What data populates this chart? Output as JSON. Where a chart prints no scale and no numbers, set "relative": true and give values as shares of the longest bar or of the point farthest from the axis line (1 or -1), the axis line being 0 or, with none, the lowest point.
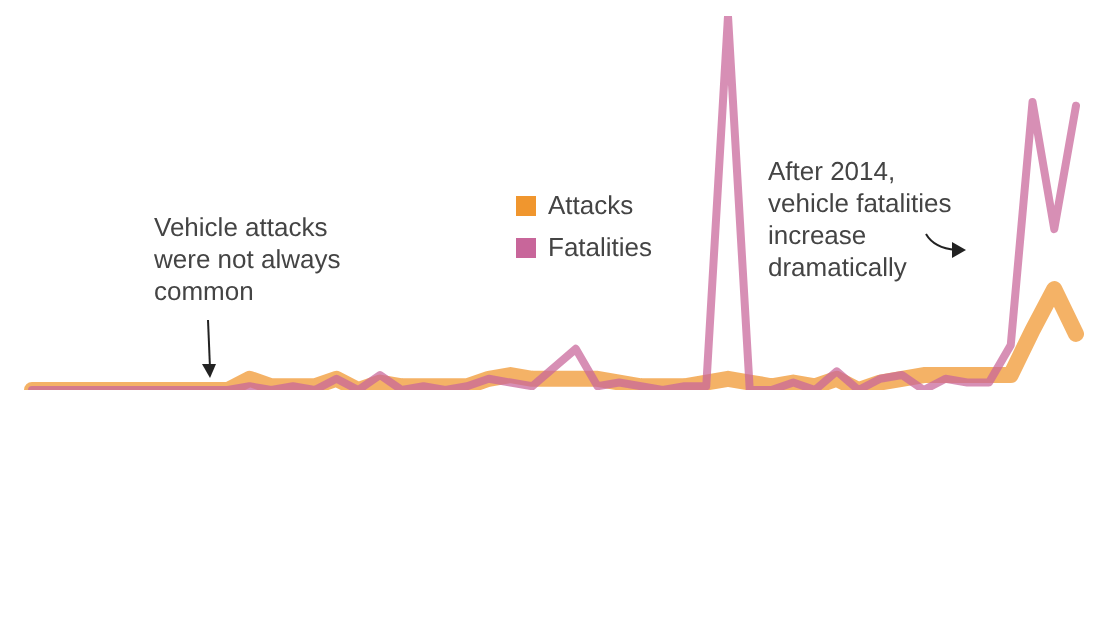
{
  "chart_data": {
    "type": "line",
    "relative": true,
    "legend": "center",
    "marker": "none",
    "categories": [
      null,
      null,
      null,
      null,
      null,
      null,
      null,
      null,
      null,
      null,
      null,
      null,
      null,
      null,
      null,
      null,
      null,
      null,
      null,
      null,
      null,
      null,
      null,
      null,
      null,
      null,
      null,
      null,
      null,
      null,
      null,
      null,
      null,
      null,
      null,
      null,
      null,
      null,
      null,
      null,
      null,
      null,
      null,
      null,
      null,
      null,
      null,
      null,
      null
    ],
    "series": [
      {
        "name": "Attacks",
        "color": "#f0962e",
        "values": [
          0,
          0,
          0,
          0,
          0,
          0,
          0,
          0,
          0,
          0,
          0.03,
          0.01,
          0.01,
          0.01,
          0.03,
          0,
          0.02,
          0.01,
          0.01,
          0.01,
          0.01,
          0.03,
          0.04,
          0.03,
          0.03,
          0.03,
          0.03,
          0.02,
          0.01,
          0.01,
          0.01,
          0.02,
          0.03,
          0.02,
          0.01,
          0.02,
          0.01,
          0.03,
          0,
          0.02,
          0.03,
          0.04,
          0.04,
          0.04,
          0.04,
          0.04,
          0.16,
          0.27,
          0.15
        ]
      },
      {
        "name": "Fatalities",
        "color": "#c8669a",
        "values": [
          0,
          0,
          0,
          0,
          0,
          0,
          0,
          0,
          0,
          0,
          0.01,
          0,
          0.01,
          0,
          0.03,
          0,
          0.04,
          0,
          0.01,
          0,
          0.01,
          0.03,
          0.02,
          0.01,
          0.06,
          0.11,
          0.01,
          0.02,
          0.01,
          0,
          0.01,
          0.01,
          1,
          0,
          0,
          0.02,
          0,
          0.05,
          0,
          0.03,
          0.04,
          0,
          0.03,
          0.02,
          0.02,
          0.12,
          0.77,
          0.43,
          0.76
        ]
      }
    ],
    "annotations": [
      "Vehicle attacks were not always common",
      "After 2014, vehicle fatalities increase dramatically"
    ]
  }
}
